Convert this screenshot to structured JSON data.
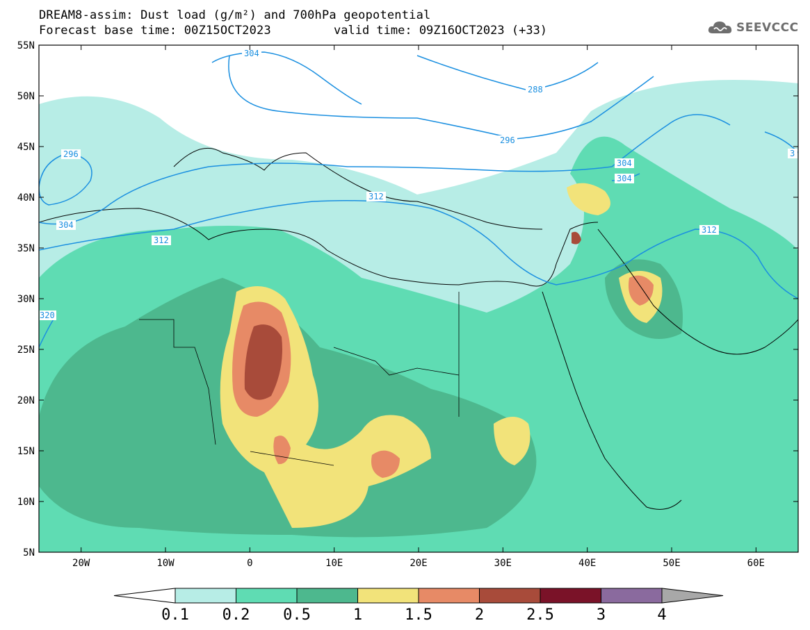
{
  "header": {
    "title_line1": "DREAM8-assim: Dust load (g/m²) and 700hPa geopotential",
    "title_line2_left": "Forecast base time: 00Z15OCT2023",
    "title_line2_right": "valid time: 09Z16OCT2023 (+33)"
  },
  "logo": {
    "text": "SEEVCCC",
    "icon": "cloud-icon"
  },
  "map": {
    "lon_range": [
      -25,
      65
    ],
    "lat_range": [
      5,
      55
    ],
    "lat_ticks": [
      "55N",
      "50N",
      "45N",
      "40N",
      "35N",
      "30N",
      "25N",
      "20N",
      "15N",
      "10N",
      "5N"
    ],
    "lon_ticks": [
      "20W",
      "10W",
      "0",
      "10E",
      "20E",
      "30E",
      "40E",
      "50E",
      "60E"
    ],
    "contour_labels": [
      "304",
      "288",
      "296",
      "296",
      "304",
      "304",
      "312",
      "312",
      "304",
      "312",
      "3",
      "320"
    ]
  },
  "colorbar": {
    "levels": [
      "0.1",
      "0.2",
      "0.5",
      "1",
      "1.5",
      "2",
      "2.5",
      "3",
      "4"
    ],
    "colors": [
      "#b7ede6",
      "#5fdcb3",
      "#4db88e",
      "#f2e37a",
      "#e78a66",
      "#a84b3a",
      "#7a1228",
      "#8a6a9e"
    ],
    "low_color": "#ffffff",
    "high_color": "#a8a8a8"
  }
}
